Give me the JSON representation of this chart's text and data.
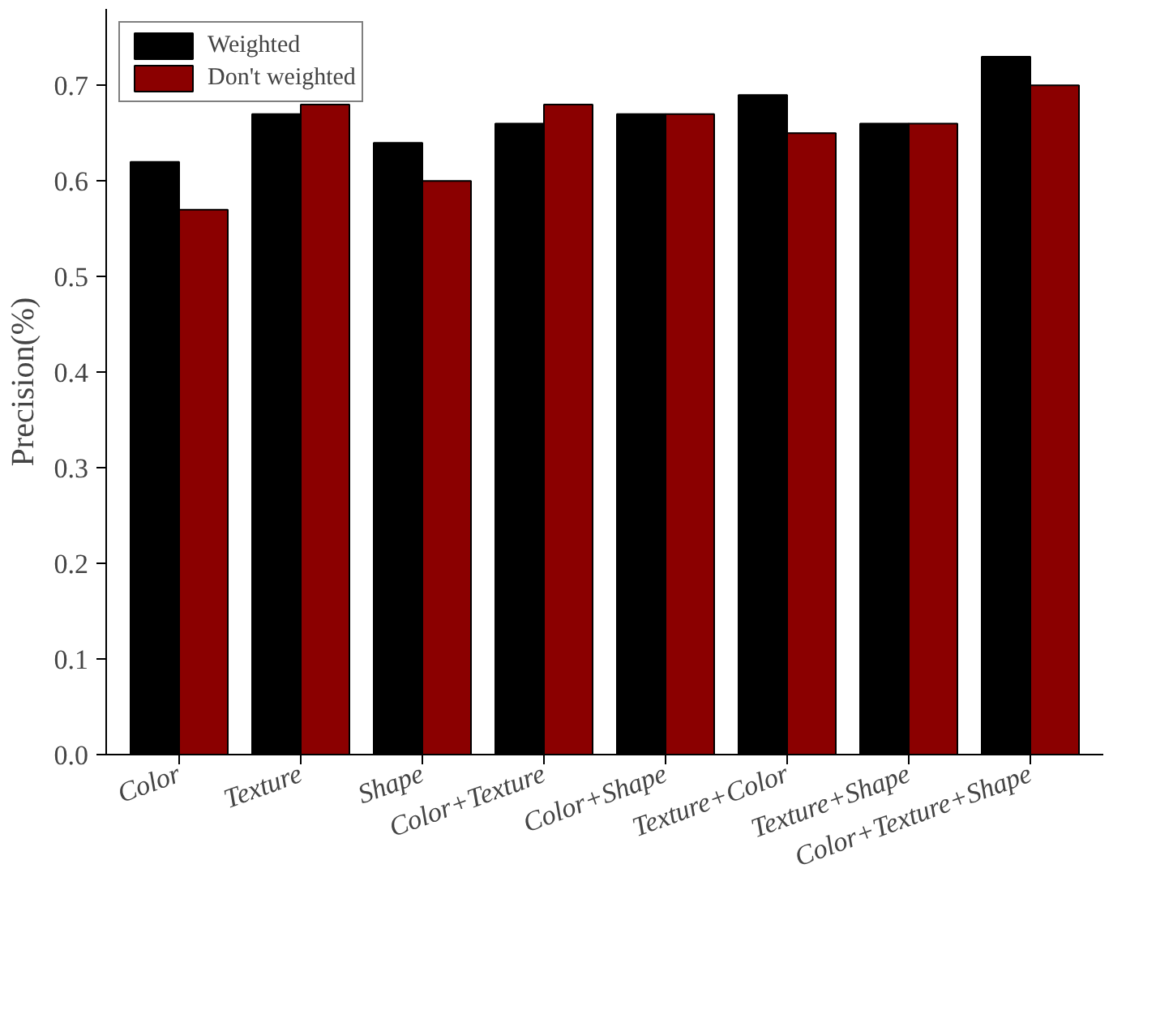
{
  "chart_data": {
    "type": "bar",
    "ylabel": "Precision(%)",
    "categories": [
      "Color",
      "Texture",
      "Shape",
      "Color+Texture",
      "Color+Shape",
      "Texture+Color",
      "Texture+Shape",
      "Color+Texture+Shape"
    ],
    "series": [
      {
        "name": "Weighted",
        "color": "#000000",
        "values": [
          0.62,
          0.67,
          0.64,
          0.66,
          0.67,
          0.69,
          0.66,
          0.73
        ]
      },
      {
        "name": "Don't weighted",
        "color": "#8b0000",
        "values": [
          0.57,
          0.68,
          0.6,
          0.68,
          0.67,
          0.65,
          0.66,
          0.7
        ]
      }
    ],
    "ylim": [
      0,
      0.78
    ],
    "yticks": [
      {
        "value": 0,
        "label": "0.0"
      },
      0.1,
      0.2,
      0.3,
      0.4,
      0.5,
      0.6,
      0.7
    ],
    "grid": false,
    "legend": "top left"
  }
}
